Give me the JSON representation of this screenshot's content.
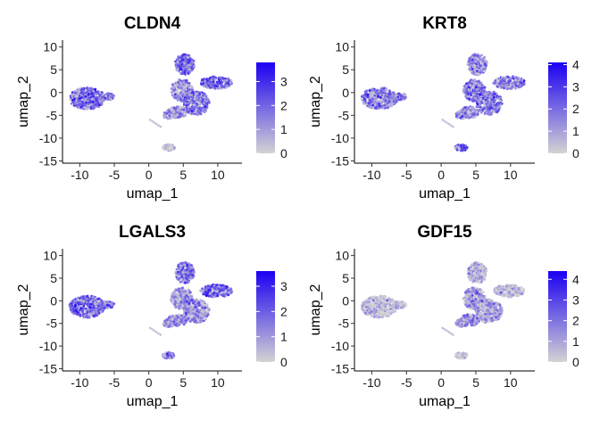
{
  "chart_data": [
    {
      "type": "scatter",
      "title": "CLDN4",
      "xlabel": "umap_1",
      "ylabel": "umap_2",
      "xlim": [
        -12.5,
        13.5
      ],
      "ylim": [
        -15.5,
        11.5
      ],
      "xticks": [
        -10,
        -5,
        0,
        5,
        10
      ],
      "yticks": [
        10,
        5,
        0,
        -5,
        -10,
        -15
      ],
      "legend": {
        "position": "right",
        "min": 0,
        "max": 3.8,
        "ticks": [
          3,
          2,
          1,
          0
        ],
        "low_color": "#d3d3d3",
        "high_color": "#1c00f2"
      },
      "clusters": [
        {
          "cx": -8.9,
          "cy": -1.3,
          "rx": 2.6,
          "ry": 2.4,
          "level": 0.55
        },
        {
          "cx": -6.1,
          "cy": -0.9,
          "rx": 1.1,
          "ry": 0.8,
          "level": 0.5
        },
        {
          "cx": 5.2,
          "cy": 6.2,
          "rx": 1.4,
          "ry": 2.3,
          "level": 0.6
        },
        {
          "cx": 9.8,
          "cy": 2.2,
          "rx": 2.3,
          "ry": 1.4,
          "level": 0.6
        },
        {
          "cx": 4.8,
          "cy": 0.5,
          "rx": 1.6,
          "ry": 2.4,
          "level": 0.4
        },
        {
          "cx": 6.9,
          "cy": -2.3,
          "rx": 1.9,
          "ry": 2.6,
          "level": 0.55
        },
        {
          "cx": 4.1,
          "cy": -4.3,
          "rx": 1.4,
          "ry": 1.3,
          "level": 0.35
        },
        {
          "cx": 2.9,
          "cy": -4.9,
          "rx": 0.8,
          "ry": 0.9,
          "level": 0.3
        },
        {
          "cx": 2.9,
          "cy": -12.1,
          "rx": 0.9,
          "ry": 0.7,
          "level": 0.03
        }
      ]
    },
    {
      "type": "scatter",
      "title": "KRT8",
      "xlabel": "umap_1",
      "ylabel": "umap_2",
      "xlim": [
        -12.5,
        13.5
      ],
      "ylim": [
        -15.5,
        11.5
      ],
      "xticks": [
        -10,
        -5,
        0,
        5,
        10
      ],
      "yticks": [
        10,
        5,
        0,
        -5,
        -10,
        -15
      ],
      "legend": {
        "position": "right",
        "min": 0,
        "max": 4.1,
        "ticks": [
          4,
          3,
          2,
          1,
          0
        ],
        "low_color": "#d3d3d3",
        "high_color": "#1c00f2"
      },
      "clusters": [
        {
          "cx": -8.9,
          "cy": -1.3,
          "rx": 2.6,
          "ry": 2.4,
          "level": 0.5
        },
        {
          "cx": -6.1,
          "cy": -0.9,
          "rx": 1.1,
          "ry": 0.8,
          "level": 0.45
        },
        {
          "cx": 5.2,
          "cy": 6.2,
          "rx": 1.4,
          "ry": 2.3,
          "level": 0.4
        },
        {
          "cx": 9.8,
          "cy": 2.2,
          "rx": 2.3,
          "ry": 1.4,
          "level": 0.45
        },
        {
          "cx": 4.8,
          "cy": 0.5,
          "rx": 1.6,
          "ry": 2.4,
          "level": 0.55
        },
        {
          "cx": 6.9,
          "cy": -2.3,
          "rx": 1.9,
          "ry": 2.6,
          "level": 0.5
        },
        {
          "cx": 4.1,
          "cy": -4.3,
          "rx": 1.4,
          "ry": 1.3,
          "level": 0.5
        },
        {
          "cx": 2.9,
          "cy": -4.9,
          "rx": 0.8,
          "ry": 0.9,
          "level": 0.45
        },
        {
          "cx": 2.9,
          "cy": -12.1,
          "rx": 0.9,
          "ry": 0.7,
          "level": 0.7
        }
      ]
    },
    {
      "type": "scatter",
      "title": "LGALS3",
      "xlabel": "umap_1",
      "ylabel": "umap_2",
      "xlim": [
        -12.5,
        13.5
      ],
      "ylim": [
        -15.5,
        11.5
      ],
      "xticks": [
        -10,
        -5,
        0,
        5,
        10
      ],
      "yticks": [
        10,
        5,
        0,
        -5,
        -10,
        -15
      ],
      "legend": {
        "position": "right",
        "min": 0,
        "max": 3.6,
        "ticks": [
          3,
          2,
          1,
          0
        ],
        "low_color": "#d3d3d3",
        "high_color": "#1c00f2"
      },
      "clusters": [
        {
          "cx": -8.9,
          "cy": -1.3,
          "rx": 2.6,
          "ry": 2.4,
          "level": 0.6
        },
        {
          "cx": -6.1,
          "cy": -0.9,
          "rx": 1.1,
          "ry": 0.8,
          "level": 0.5
        },
        {
          "cx": 5.2,
          "cy": 6.2,
          "rx": 1.4,
          "ry": 2.3,
          "level": 0.5
        },
        {
          "cx": 9.8,
          "cy": 2.2,
          "rx": 2.3,
          "ry": 1.4,
          "level": 0.6
        },
        {
          "cx": 4.8,
          "cy": 0.5,
          "rx": 1.6,
          "ry": 2.4,
          "level": 0.35
        },
        {
          "cx": 6.9,
          "cy": -2.3,
          "rx": 1.9,
          "ry": 2.6,
          "level": 0.4
        },
        {
          "cx": 4.1,
          "cy": -4.3,
          "rx": 1.4,
          "ry": 1.3,
          "level": 0.4
        },
        {
          "cx": 2.9,
          "cy": -4.9,
          "rx": 0.8,
          "ry": 0.9,
          "level": 0.35
        },
        {
          "cx": 2.9,
          "cy": -12.1,
          "rx": 0.9,
          "ry": 0.7,
          "level": 0.6
        }
      ]
    },
    {
      "type": "scatter",
      "title": "GDF15",
      "xlabel": "umap_1",
      "ylabel": "umap_2",
      "xlim": [
        -12.5,
        13.5
      ],
      "ylim": [
        -15.5,
        11.5
      ],
      "xticks": [
        -10,
        -5,
        0,
        5,
        10
      ],
      "yticks": [
        10,
        5,
        0,
        -5,
        -10,
        -15
      ],
      "legend": {
        "position": "right",
        "min": 0,
        "max": 4.4,
        "ticks": [
          4,
          3,
          2,
          1,
          0
        ],
        "low_color": "#d3d3d3",
        "high_color": "#1c00f2"
      },
      "clusters": [
        {
          "cx": -8.9,
          "cy": -1.3,
          "rx": 2.6,
          "ry": 2.4,
          "level": 0.1
        },
        {
          "cx": -6.1,
          "cy": -0.9,
          "rx": 1.1,
          "ry": 0.8,
          "level": 0.08
        },
        {
          "cx": 5.2,
          "cy": 6.2,
          "rx": 1.4,
          "ry": 2.3,
          "level": 0.15
        },
        {
          "cx": 9.8,
          "cy": 2.2,
          "rx": 2.3,
          "ry": 1.4,
          "level": 0.08
        },
        {
          "cx": 4.8,
          "cy": 0.5,
          "rx": 1.6,
          "ry": 2.4,
          "level": 0.35
        },
        {
          "cx": 6.9,
          "cy": -2.3,
          "rx": 1.9,
          "ry": 2.6,
          "level": 0.3
        },
        {
          "cx": 4.1,
          "cy": -4.3,
          "rx": 1.4,
          "ry": 1.3,
          "level": 0.4
        },
        {
          "cx": 2.9,
          "cy": -4.9,
          "rx": 0.8,
          "ry": 0.9,
          "level": 0.3
        },
        {
          "cx": 2.9,
          "cy": -12.1,
          "rx": 0.9,
          "ry": 0.7,
          "level": 0.05
        }
      ]
    }
  ]
}
